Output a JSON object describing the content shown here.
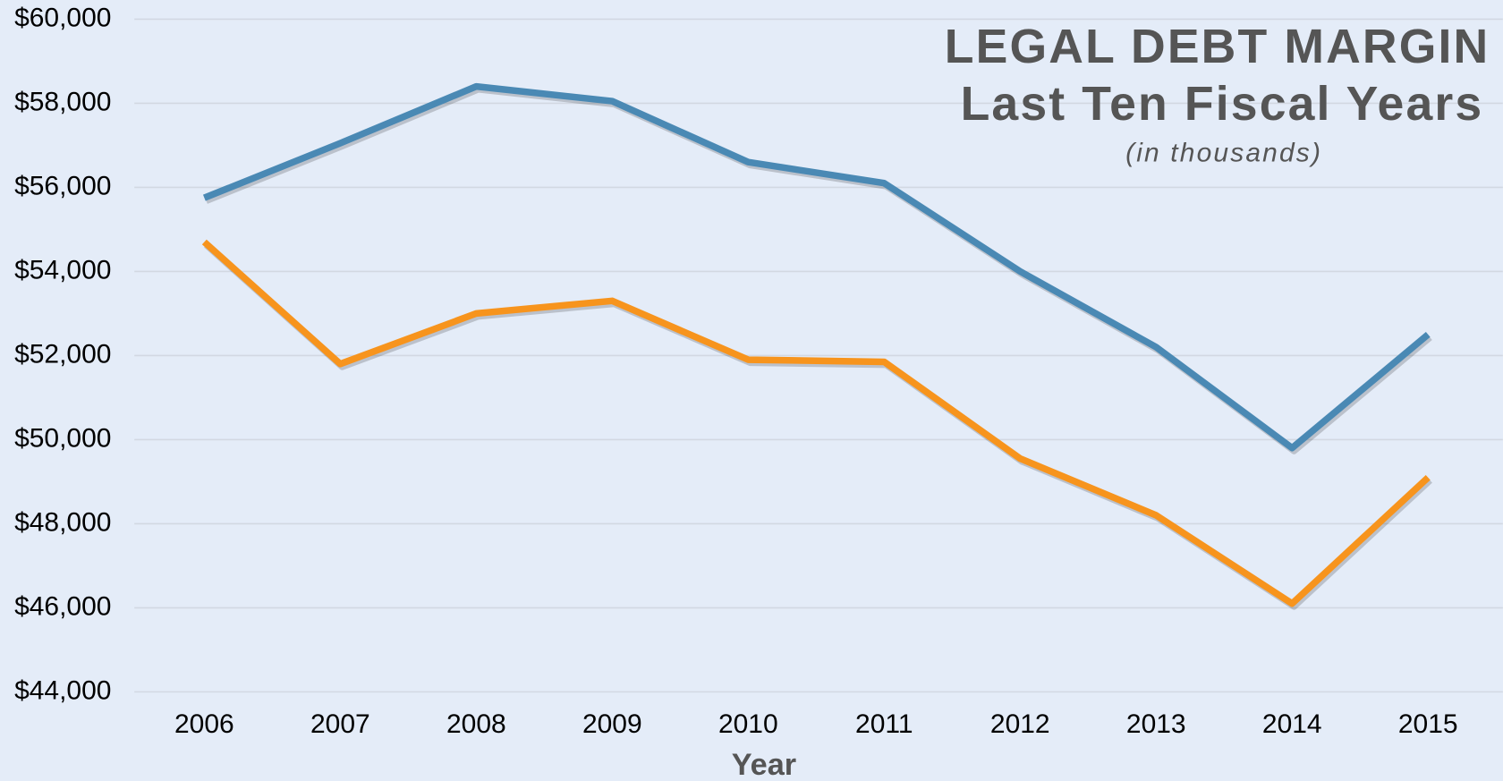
{
  "chart_data": {
    "type": "line",
    "title": "LEGAL DEBT MARGIN",
    "subtitle": "Last Ten Fiscal Years",
    "note": "(in thousands)",
    "x_label": "Year",
    "categories": [
      "2006",
      "2007",
      "2008",
      "2009",
      "2010",
      "2011",
      "2012",
      "2013",
      "2014",
      "2015"
    ],
    "series": [
      {
        "color": "#4a89b4",
        "values": [
          55750,
          57050,
          58400,
          58050,
          56600,
          56100,
          54000,
          52200,
          49800,
          52500
        ]
      },
      {
        "color": "#f7941d",
        "values": [
          54700,
          51800,
          53000,
          53300,
          51900,
          51850,
          49550,
          48200,
          46100,
          49100
        ]
      }
    ],
    "ylim": [
      44000,
      60000
    ],
    "yticks": [
      {
        "value": 44000,
        "label": "$44,000"
      },
      {
        "value": 46000,
        "label": "$46,000"
      },
      {
        "value": 48000,
        "label": "$48,000"
      },
      {
        "value": 50000,
        "label": "$50,000"
      },
      {
        "value": 52000,
        "label": "$52,000"
      },
      {
        "value": 54000,
        "label": "$54,000"
      },
      {
        "value": 56000,
        "label": "$56,000"
      },
      {
        "value": 58000,
        "label": "$58,000"
      },
      {
        "value": 60000,
        "label": "$60,000"
      }
    ],
    "grid": true
  }
}
